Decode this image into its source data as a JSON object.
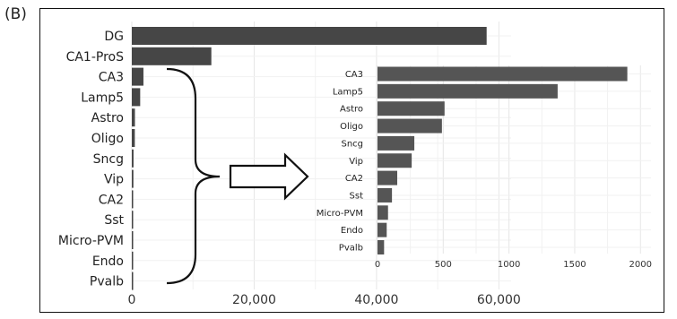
{
  "panel_label": "(B)",
  "chart_data": [
    {
      "type": "bar",
      "orientation": "horizontal",
      "categories": [
        "DG",
        "CA1-ProS",
        "CA3",
        "Lamp5",
        "Astro",
        "Oligo",
        "Sncg",
        "Vip",
        "CA2",
        "Sst",
        "Micro-PVM",
        "Endo",
        "Pvalb"
      ],
      "values": [
        58000,
        13000,
        1900,
        1370,
        510,
        490,
        280,
        260,
        150,
        110,
        80,
        70,
        50
      ],
      "xlim": [
        0,
        62000
      ],
      "xticks": [
        0,
        20000,
        40000,
        60000
      ],
      "xtick_labels": [
        "0",
        "20,000",
        "40,000",
        "60,000"
      ],
      "grid": true,
      "bar_color": "#464646",
      "title": "",
      "xlabel": "",
      "ylabel": ""
    },
    {
      "type": "bar",
      "orientation": "horizontal",
      "categories": [
        "CA3",
        "Lamp5",
        "Astro",
        "Oligo",
        "Sncg",
        "Vip",
        "CA2",
        "Sst",
        "Micro-PVM",
        "Endo",
        "Pvalb"
      ],
      "values": [
        1900,
        1370,
        510,
        490,
        280,
        260,
        150,
        110,
        80,
        70,
        50
      ],
      "xlim": [
        0,
        2080
      ],
      "xticks": [
        0,
        500,
        1000,
        1500,
        2000
      ],
      "xtick_labels": [
        "0",
        "500",
        "1000",
        "1500",
        "2000"
      ],
      "grid": true,
      "bar_color": "#555555",
      "title": "",
      "xlabel": "",
      "ylabel": ""
    }
  ],
  "annotation": {
    "brace_color": "#111111",
    "arrow_color": "#111111"
  }
}
